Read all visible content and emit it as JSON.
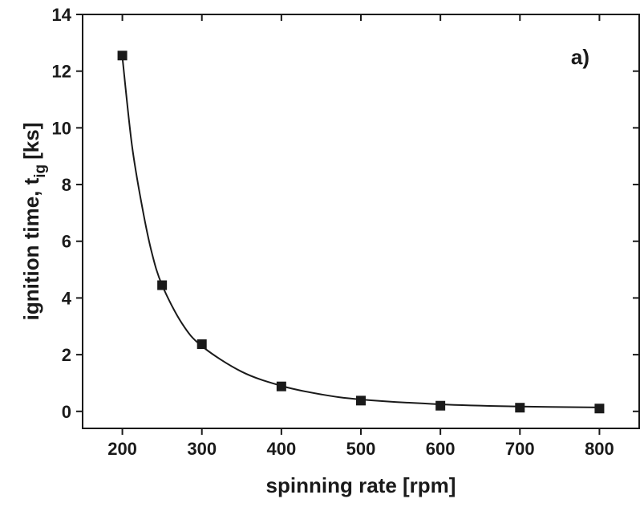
{
  "chart_data": {
    "type": "scatter",
    "xlabel": "spinning rate [rpm]",
    "ylabel": {
      "main": "ignition time, t",
      "sub": "ig",
      "unit": "[ks]"
    },
    "annotation": "a)",
    "xlim": [
      150,
      850
    ],
    "ylim": [
      -0.6,
      14
    ],
    "xticks": [
      200,
      300,
      400,
      500,
      600,
      700,
      800
    ],
    "yticks": [
      0,
      2,
      4,
      6,
      8,
      10,
      12,
      14
    ],
    "series": [
      {
        "kind": "points",
        "color": "#1a1a1a",
        "x": [
          200,
          250,
          300,
          400,
          500,
          600,
          700,
          800
        ],
        "values": [
          12.55,
          4.45,
          2.37,
          0.88,
          0.38,
          0.2,
          0.13,
          0.1
        ]
      },
      {
        "kind": "fit",
        "color": "#1a1a1a",
        "x": [
          200,
          212,
          225,
          237,
          250,
          275,
          300,
          350,
          400,
          450,
          500,
          600,
          700,
          800
        ],
        "values": [
          12.5,
          9.4,
          7.2,
          5.6,
          4.45,
          3.1,
          2.3,
          1.4,
          0.9,
          0.6,
          0.42,
          0.25,
          0.17,
          0.14
        ]
      }
    ]
  }
}
